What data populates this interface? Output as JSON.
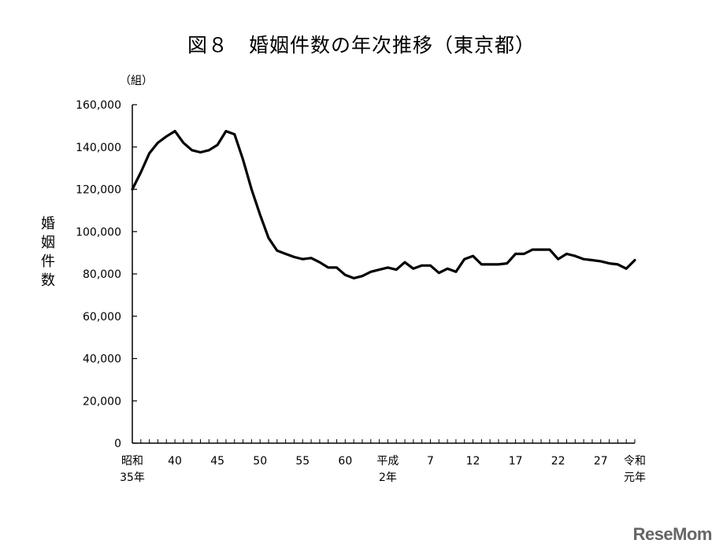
{
  "chart_data": {
    "type": "line",
    "title": "図８　婚姻件数の年次推移（東京都）",
    "ylabel": "婚姻件数",
    "yunit": "（組）",
    "ylim": [
      0,
      160000
    ],
    "yticks": [
      0,
      20000,
      40000,
      60000,
      80000,
      100000,
      120000,
      140000,
      160000
    ],
    "ytick_labels": [
      "0",
      "20,000",
      "40,000",
      "60,000",
      "80,000",
      "100,000",
      "120,000",
      "140,000",
      "160,000"
    ],
    "xticks": [
      {
        "year": 1960,
        "lines": [
          "昭和",
          "35年"
        ]
      },
      {
        "year": 1965,
        "lines": [
          "40"
        ]
      },
      {
        "year": 1970,
        "lines": [
          "45"
        ]
      },
      {
        "year": 1975,
        "lines": [
          "50"
        ]
      },
      {
        "year": 1980,
        "lines": [
          "55"
        ]
      },
      {
        "year": 1985,
        "lines": [
          "60"
        ]
      },
      {
        "year": 1990,
        "lines": [
          "平成",
          "2年"
        ]
      },
      {
        "year": 1995,
        "lines": [
          "7"
        ]
      },
      {
        "year": 2000,
        "lines": [
          "12"
        ]
      },
      {
        "year": 2005,
        "lines": [
          "17"
        ]
      },
      {
        "year": 2010,
        "lines": [
          "22"
        ]
      },
      {
        "year": 2015,
        "lines": [
          "27"
        ]
      },
      {
        "year": 2019,
        "lines": [
          "令和",
          "元年"
        ]
      }
    ],
    "xlim": [
      1960,
      2019
    ],
    "grid": false,
    "series": [
      {
        "color": "#000000",
        "x": [
          1960,
          1961,
          1962,
          1963,
          1964,
          1965,
          1966,
          1967,
          1968,
          1969,
          1970,
          1971,
          1972,
          1973,
          1974,
          1975,
          1976,
          1977,
          1978,
          1979,
          1980,
          1981,
          1982,
          1983,
          1984,
          1985,
          1986,
          1987,
          1988,
          1989,
          1990,
          1991,
          1992,
          1993,
          1994,
          1995,
          1996,
          1997,
          1998,
          1999,
          2000,
          2001,
          2002,
          2003,
          2004,
          2005,
          2006,
          2007,
          2008,
          2009,
          2010,
          2011,
          2012,
          2013,
          2014,
          2015,
          2016,
          2017,
          2018,
          2019
        ],
        "values": [
          120000,
          128000,
          137000,
          142000,
          145000,
          147500,
          142000,
          138500,
          137500,
          138500,
          141000,
          147500,
          146000,
          134000,
          120000,
          108000,
          97000,
          91000,
          89500,
          88000,
          87000,
          87500,
          85500,
          83000,
          83000,
          79500,
          78000,
          79000,
          81000,
          82000,
          83000,
          82000,
          85500,
          82500,
          84000,
          84000,
          80500,
          82500,
          81000,
          87000,
          88500,
          84500,
          84500,
          84500,
          85000,
          89500,
          89500,
          91500,
          91500,
          91500,
          87000,
          89500,
          88500,
          87000,
          86500,
          86000,
          85000,
          84500,
          82500,
          86500
        ]
      }
    ]
  },
  "watermark": "ReseMom"
}
